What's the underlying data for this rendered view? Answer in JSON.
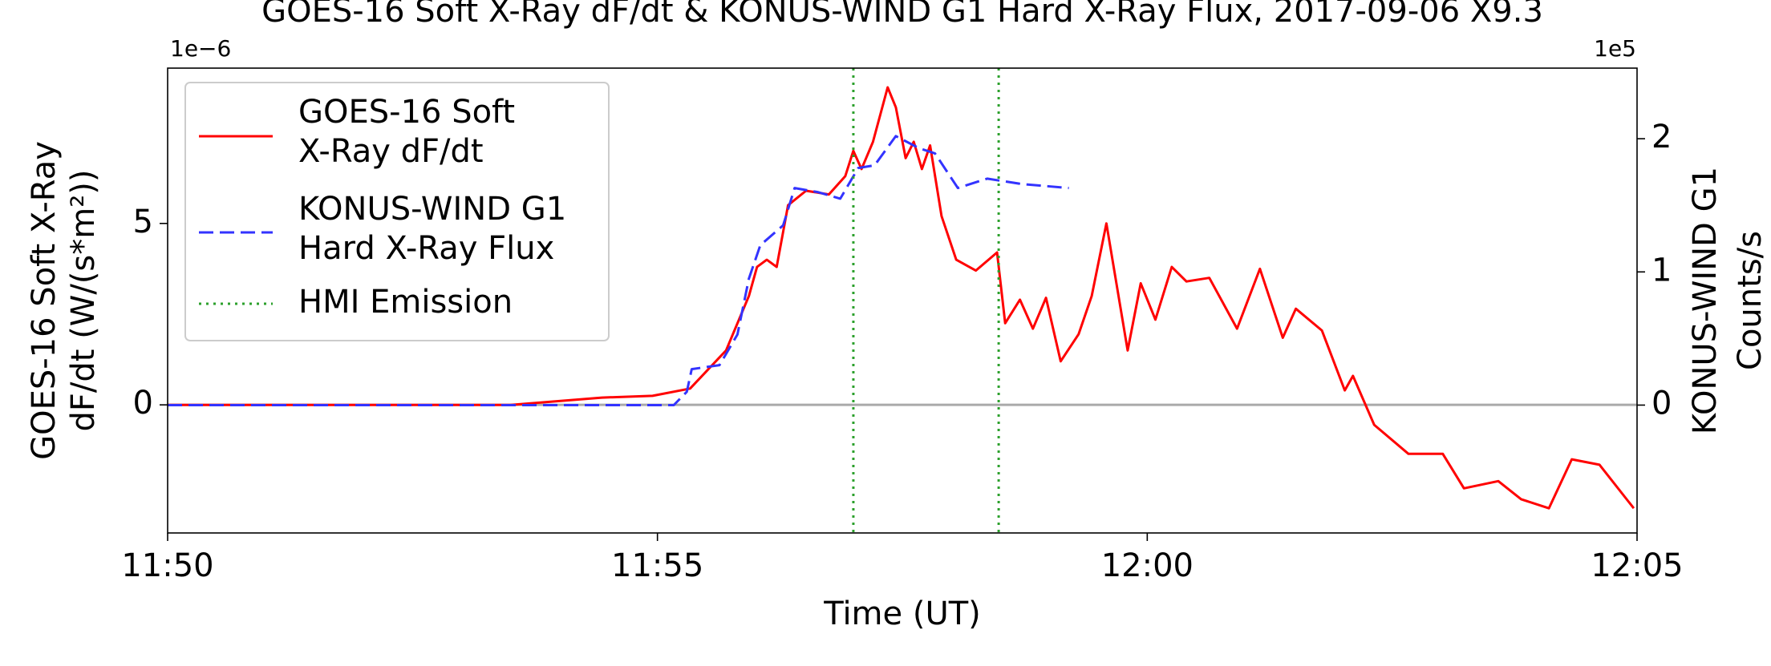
{
  "chart_data": {
    "type": "line",
    "title": "GOES-16 Soft X-Ray dF/dt & KONUS-WIND G1 Hard X-Ray Flux, 2017-09-06 X9.3",
    "xlabel": "Time (UT)",
    "ylabel": "GOES-16 Soft X-Ray\ndF/dt (W/(s*m²))",
    "y2label": "KONUS-WIND G1\nCounts/s",
    "y_offset_label": "1e−6",
    "y2_offset_label": "1e5",
    "xlim": [
      "11:50:00",
      "12:05:00"
    ],
    "xticks": [
      "11:50",
      "11:55",
      "12:00",
      "12:05"
    ],
    "ylim": [
      -3.53,
      9.28
    ],
    "yticks": [
      0,
      5
    ],
    "y2lim": [
      -0.96,
      2.53
    ],
    "y2ticks": [
      0,
      1,
      2
    ],
    "zero_line_color": "#aaaaaa",
    "legend": "upper left",
    "series": [
      {
        "name": "GOES-16 Soft\nX-Ray dF/dt",
        "color": "#ff0000",
        "style": "solid",
        "x": [
          "11:50:00",
          "11:53:30",
          "11:54:26",
          "11:54:57",
          "11:55:20",
          "11:55:42",
          "11:55:56",
          "11:56:01",
          "11:56:07",
          "11:56:13",
          "11:56:20",
          "11:56:31",
          "11:56:45",
          "11:56:55",
          "11:57:00",
          "11:57:05",
          "11:57:12",
          "11:57:21",
          "11:57:26",
          "11:57:32",
          "11:57:37",
          "11:57:42",
          "11:57:47",
          "11:57:54",
          "11:58:03",
          "11:58:15",
          "11:58:28",
          "11:58:33",
          "11:58:42",
          "11:58:50",
          "11:58:58",
          "11:59:07",
          "11:59:18",
          "11:59:26",
          "11:59:35",
          "11:59:48",
          "11:59:56",
          "12:00:05",
          "12:00:15",
          "12:00:24",
          "12:00:38",
          "12:00:55",
          "12:01:09",
          "12:01:23",
          "12:01:31",
          "12:01:47",
          "12:02:01",
          "12:02:06",
          "12:02:19",
          "12:02:40",
          "12:03:01",
          "12:03:14",
          "12:03:35",
          "12:03:49",
          "12:04:06",
          "12:04:20",
          "12:04:37",
          "12:04:58"
        ],
        "values": [
          0,
          0,
          0.2,
          0.25,
          0.45,
          1.5,
          3.0,
          3.8,
          4.0,
          3.8,
          5.5,
          5.9,
          5.8,
          6.3,
          7.0,
          6.5,
          7.25,
          8.75,
          8.2,
          6.8,
          7.25,
          6.5,
          7.15,
          5.2,
          4.0,
          3.7,
          4.2,
          2.25,
          2.9,
          2.1,
          2.95,
          1.2,
          1.95,
          3.0,
          5.0,
          1.5,
          3.35,
          2.35,
          3.8,
          3.4,
          3.5,
          2.1,
          3.75,
          1.85,
          2.65,
          2.05,
          0.4,
          0.8,
          -0.55,
          -1.35,
          -1.35,
          -2.3,
          -2.1,
          -2.6,
          -2.85,
          -1.5,
          -1.65,
          -2.85
        ]
      },
      {
        "name": "KONUS-WIND G1\nHard X-Ray Flux",
        "color": "#3333ff",
        "style": "dashed",
        "axis": "y2",
        "x": [
          "11:50:00",
          "11:55:10",
          "11:55:18",
          "11:55:21",
          "11:55:38",
          "11:55:49",
          "11:55:56",
          "11:56:03",
          "11:56:17",
          "11:56:24",
          "11:56:38",
          "11:56:52",
          "11:57:03",
          "11:57:13",
          "11:57:26",
          "11:57:40",
          "11:57:50",
          "11:58:04",
          "11:58:22",
          "11:58:43",
          "11:59:12"
        ],
        "values": [
          0,
          0,
          0.1,
          0.27,
          0.3,
          0.53,
          0.95,
          1.2,
          1.35,
          1.63,
          1.6,
          1.55,
          1.78,
          1.8,
          2.02,
          1.93,
          1.89,
          1.63,
          1.7,
          1.66,
          1.63
        ]
      },
      {
        "name": "HMI Emission",
        "color": "#2ca02c",
        "style": "dotted",
        "type": "vline",
        "x": [
          "11:57:00",
          "11:58:29"
        ]
      }
    ]
  }
}
